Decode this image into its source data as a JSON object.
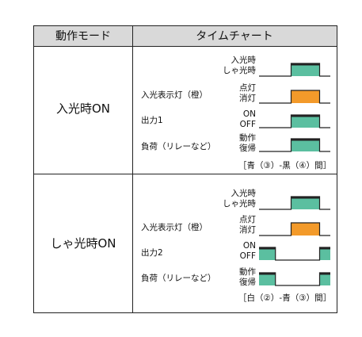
{
  "header": {
    "mode": "動作モード",
    "chart": "タイムチャート"
  },
  "colors": {
    "green": "#5bbfa0",
    "orange": "#f39a2a",
    "line": "#222222",
    "header_bg": "#d9d9d9"
  },
  "sections": [
    {
      "mode": "入光時ON",
      "rows": [
        {
          "label": "",
          "states": [
            "入光時",
            "しゃ光時"
          ],
          "color": "green",
          "pulses": [
            [
              0.45,
              0.85
            ]
          ],
          "thick_top": true
        },
        {
          "label": "入光表示灯（橙）",
          "states": [
            "点灯",
            "消灯"
          ],
          "color": "orange",
          "pulses": [
            [
              0.45,
              0.85
            ]
          ],
          "thick_top": false
        },
        {
          "label": "出力1",
          "states": [
            "ON",
            "OFF"
          ],
          "color": "green",
          "pulses": [
            [
              0.45,
              0.85
            ]
          ],
          "thick_top": true
        },
        {
          "label": "負荷（リレーなど）",
          "states": [
            "動作",
            "復帰"
          ],
          "color": "green",
          "pulses": [
            [
              0.45,
              0.85
            ]
          ],
          "thick_top": true
        }
      ],
      "note": "［青（③）-黒（④）間］"
    },
    {
      "mode": "しゃ光時ON",
      "rows": [
        {
          "label": "",
          "states": [
            "入光時",
            "しゃ光時"
          ],
          "color": "green",
          "pulses": [
            [
              0.45,
              0.85
            ]
          ],
          "thick_top": true
        },
        {
          "label": "入光表示灯（橙）",
          "states": [
            "点灯",
            "消灯"
          ],
          "color": "orange",
          "pulses": [
            [
              0.45,
              0.85
            ]
          ],
          "thick_top": false
        },
        {
          "label": "出力2",
          "states": [
            "ON",
            "OFF"
          ],
          "color": "green",
          "pulses": [
            [
              0.0,
              0.23
            ],
            [
              0.85,
              1.0
            ]
          ],
          "thick_top": true
        },
        {
          "label": "負荷（リレーなど）",
          "states": [
            "動作",
            "復帰"
          ],
          "color": "green",
          "pulses": [
            [
              0.0,
              0.23
            ],
            [
              0.85,
              1.0
            ]
          ],
          "thick_top": true
        }
      ],
      "note": "［白（②）-青（③）間］"
    }
  ]
}
